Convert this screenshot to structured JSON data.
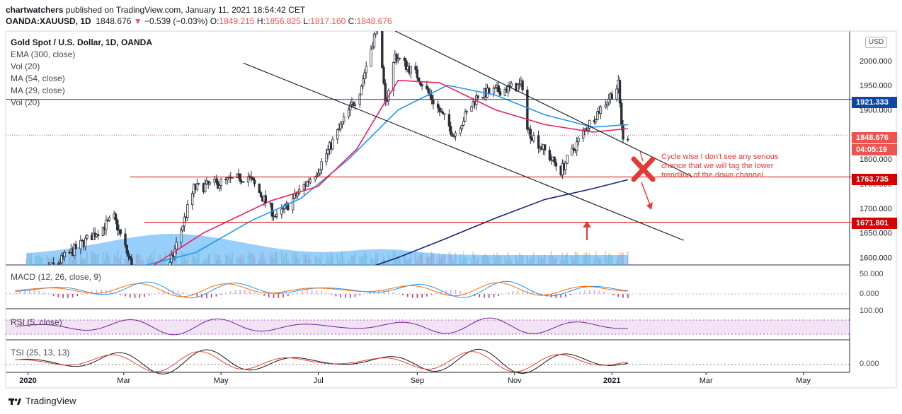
{
  "header": {
    "author": "chartwatchers",
    "published_text": "published on TradingView.com, January 11, 2021 18:54:42 CET"
  },
  "symbol_line": {
    "symbol": "OANDA:XAUUSD, 1D",
    "last": "1848.676",
    "change": "−0.539 (−0.03%)",
    "o_label": "O:",
    "o": "1849.215",
    "h_label": "H:",
    "h": "1856.825",
    "l_label": "L:",
    "l": "1817.160",
    "c_label": "C:",
    "c": "1848.676"
  },
  "legend": {
    "title": "Gold Spot / U.S. Dollar, 1D, OANDA",
    "items": [
      "EMA (300, close)",
      "Vol (20)",
      "MA (54, close)",
      "MA (29, close)",
      "Vol (20)"
    ]
  },
  "currency_badge": "USD",
  "price_labels": [
    {
      "text": "1921.333",
      "color": "#0d47a1"
    },
    {
      "text": "1848.676",
      "color": "#ef5350"
    },
    {
      "text": "04:05:19",
      "color": "#ef5350"
    },
    {
      "text": "1763.735",
      "color": "#d50000"
    },
    {
      "text": "1671.801",
      "color": "#d50000"
    }
  ],
  "annotation": "Cycle wise I don't see any serious chance that we will tag the lower trendline of the down channel.",
  "panes": {
    "macd": {
      "title": "MACD (12, 26, close, 9)",
      "ticks": [
        "50.000",
        "0.000"
      ]
    },
    "rsi": {
      "title": "RSI (5, close)",
      "ticks": [
        "100.00"
      ]
    },
    "tsi": {
      "title": "TSI (25, 13, 13)",
      "ticks": [
        "0.000"
      ]
    }
  },
  "footer": {
    "brand": "TradingView"
  },
  "colors": {
    "up": "#26a69a",
    "down": "#ef5350",
    "candle_body": "#2a2e39",
    "ema300": "#1a237e",
    "ma54": "#2196f3",
    "ma29": "#e91e63",
    "volume": "#42a5f5",
    "annotation": "#e53935"
  },
  "chart_data": {
    "type": "line",
    "title": "Gold Spot / U.S. Dollar, 1D, OANDA",
    "x_tick_labels": [
      "2020",
      "Mar",
      "May",
      "Jul",
      "Sep",
      "Nov",
      "2021",
      "Mar",
      "May"
    ],
    "y_tick_labels": [
      "1600.000",
      "1650.000",
      "1700.000",
      "1750.000",
      "1800.000",
      "1850.000",
      "1900.000",
      "1950.000",
      "2000.000"
    ],
    "ylim": [
      1585,
      2060
    ],
    "price_path": [
      {
        "date": "2019-12-31",
        "value": 1517
      },
      {
        "date": "2020-01-08",
        "value": 1560
      },
      {
        "date": "2020-02-24",
        "value": 1680
      },
      {
        "date": "2020-03-19",
        "value": 1470
      },
      {
        "date": "2020-04-14",
        "value": 1740
      },
      {
        "date": "2020-05-18",
        "value": 1765
      },
      {
        "date": "2020-06-05",
        "value": 1680
      },
      {
        "date": "2020-07-01",
        "value": 1780
      },
      {
        "date": "2020-07-27",
        "value": 1940
      },
      {
        "date": "2020-08-07",
        "value": 2075
      },
      {
        "date": "2020-08-12",
        "value": 1910
      },
      {
        "date": "2020-08-18",
        "value": 2010
      },
      {
        "date": "2020-09-01",
        "value": 1970
      },
      {
        "date": "2020-09-24",
        "value": 1850
      },
      {
        "date": "2020-10-09",
        "value": 1930
      },
      {
        "date": "2020-11-06",
        "value": 1950
      },
      {
        "date": "2020-11-09",
        "value": 1860
      },
      {
        "date": "2020-11-30",
        "value": 1776
      },
      {
        "date": "2020-12-16",
        "value": 1865
      },
      {
        "date": "2021-01-05",
        "value": 1950
      },
      {
        "date": "2021-01-08",
        "value": 1835
      },
      {
        "date": "2021-01-11",
        "value": 1848.676
      }
    ],
    "series": [
      {
        "name": "MA (54, close)",
        "points": [
          {
            "date": "2020-02-20",
            "value": 1565
          },
          {
            "date": "2020-04-15",
            "value": 1610
          },
          {
            "date": "2020-05-20",
            "value": 1675
          },
          {
            "date": "2020-06-20",
            "value": 1720
          },
          {
            "date": "2020-07-20",
            "value": 1800
          },
          {
            "date": "2020-08-20",
            "value": 1900
          },
          {
            "date": "2020-09-20",
            "value": 1950
          },
          {
            "date": "2020-10-20",
            "value": 1930
          },
          {
            "date": "2020-11-20",
            "value": 1890
          },
          {
            "date": "2020-12-20",
            "value": 1865
          },
          {
            "date": "2021-01-11",
            "value": 1870
          }
        ]
      },
      {
        "name": "MA (29, close)",
        "points": [
          {
            "date": "2020-03-20",
            "value": 1585
          },
          {
            "date": "2020-04-20",
            "value": 1650
          },
          {
            "date": "2020-06-01",
            "value": 1715
          },
          {
            "date": "2020-07-01",
            "value": 1745
          },
          {
            "date": "2020-07-25",
            "value": 1820
          },
          {
            "date": "2020-08-20",
            "value": 1960
          },
          {
            "date": "2020-09-15",
            "value": 1955
          },
          {
            "date": "2020-10-20",
            "value": 1900
          },
          {
            "date": "2020-11-20",
            "value": 1870
          },
          {
            "date": "2020-12-20",
            "value": 1855
          },
          {
            "date": "2021-01-11",
            "value": 1862
          }
        ]
      },
      {
        "name": "EMA (300, close)",
        "points": [
          {
            "date": "2020-07-15",
            "value": 1560
          },
          {
            "date": "2020-08-20",
            "value": 1600
          },
          {
            "date": "2020-09-20",
            "value": 1640
          },
          {
            "date": "2020-10-20",
            "value": 1680
          },
          {
            "date": "2020-11-20",
            "value": 1718
          },
          {
            "date": "2020-12-20",
            "value": 1740
          },
          {
            "date": "2021-01-11",
            "value": 1758
          }
        ]
      }
    ],
    "horizontal_levels": [
      1921.333,
      1848.676,
      1763.735,
      1671.801
    ],
    "trendlines": [
      {
        "label": "channel-upper",
        "from": {
          "date": "2020-08-12",
          "value": 2070
        },
        "to": {
          "date": "2021-02-20",
          "value": 1765
        }
      },
      {
        "label": "channel-lower",
        "from": {
          "date": "2020-05-15",
          "value": 1995
        },
        "to": {
          "date": "2021-02-15",
          "value": 1635
        }
      }
    ]
  }
}
